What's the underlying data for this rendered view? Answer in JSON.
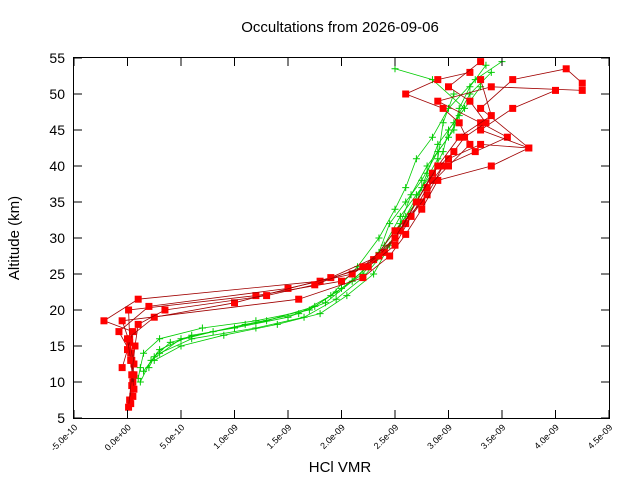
{
  "chart_data": {
    "type": "line",
    "title": "Occultations from 2026-09-06",
    "xlabel": "HCl VMR",
    "ylabel": "Altitude (km)",
    "xlim": [
      -5e-10,
      4.5e-09
    ],
    "ylim": [
      5,
      55
    ],
    "xticks": [
      "-5.0e-10",
      "0.0e+00",
      "5.0e-10",
      "1.0e-09",
      "1.5e-09",
      "2.0e-09",
      "2.5e-09",
      "3.0e-09",
      "3.5e-09",
      "4.0e-09",
      "4.5e-09"
    ],
    "yticks": [
      "5",
      "10",
      "15",
      "20",
      "25",
      "30",
      "35",
      "40",
      "45",
      "50",
      "55"
    ],
    "grid": false,
    "legend": "none",
    "colors": {
      "green_series": "#00cc00",
      "red_series": "#ff0000",
      "red_line": "#a00000"
    },
    "series": [
      {
        "marker": "plus",
        "color": "#00cc00",
        "profiles": [
          {
            "x": [
              1e-10,
              1.2e-10,
              1.5e-10,
              3e-10,
              7e-10,
              1.2e-09,
              1.7e-09,
              1.95e-09,
              2.2e-09,
              2.35e-09,
              2.45e-09,
              2.6e-09,
              2.75e-09,
              2.9e-09,
              3.05e-09,
              3.1e-09,
              3.2e-09,
              3.35e-09
            ],
            "y": [
              10.5,
              12,
              14,
              16,
              17.5,
              18.5,
              20,
              22.5,
              25,
              28,
              32,
              35,
              38,
              42,
              45,
              48,
              51,
              54
            ]
          },
          {
            "x": [
              2e-10,
              2.5e-10,
              4e-10,
              8e-10,
              1.3e-09,
              1.75e-09,
              2e-09,
              2.25e-09,
              2.4e-09,
              2.55e-09,
              2.7e-09,
              2.85e-09,
              2.95e-09,
              3e-09,
              3.15e-09,
              2.85e-09,
              2.5e-09
            ],
            "y": [
              12,
              13.5,
              15.5,
              17,
              18.5,
              20.5,
              23,
              26,
              29,
              33,
              36,
              39,
              42,
              45,
              48,
              52,
              53.5
            ]
          },
          {
            "x": [
              1.5e-10,
              3e-10,
              6e-10,
              1e-09,
              1.5e-09,
              1.85e-09,
              2.1e-09,
              2.3e-09,
              2.5e-09,
              2.7e-09,
              2.8e-09,
              2.9e-09,
              3.05e-09,
              3.2e-09,
              3.4e-09
            ],
            "y": [
              11.5,
              14.5,
              16.5,
              17.5,
              19,
              21,
              24,
              27,
              31,
              35,
              39,
              43,
              46,
              50,
              53
            ]
          },
          {
            "x": [
              2.5e-10,
              5e-10,
              9e-10,
              1.4e-09,
              1.8e-09,
              2.05e-09,
              2.3e-09,
              2.45e-09,
              2.55e-09,
              2.65e-09,
              2.8e-09,
              3e-09,
              3.1e-09,
              3.3e-09
            ],
            "y": [
              13,
              15,
              16.5,
              18,
              19.5,
              22,
              25,
              29,
              32,
              36,
              40,
              44,
              47,
              51
            ]
          },
          {
            "x": [
              1.2e-10,
              2.2e-10,
              5e-10,
              1.1e-09,
              1.6e-09,
              1.9e-09,
              2.15e-09,
              2.35e-09,
              2.5e-09,
              2.6e-09,
              2.7e-09,
              2.85e-09,
              3e-09,
              3.25e-09,
              3.5e-09
            ],
            "y": [
              10,
              13,
              16,
              18,
              19.5,
              22,
              26,
              30,
              34,
              37,
              41,
              44,
              48,
              52,
              54.5
            ]
          },
          {
            "x": [
              3e-10,
              6e-10,
              1.2e-09,
              1.65e-09,
              1.95e-09,
              2.2e-09,
              2.4e-09,
              2.6e-09,
              2.75e-09,
              2.9e-09,
              2.95e-09,
              3.05e-09
            ],
            "y": [
              14,
              16,
              17.5,
              19,
              21.5,
              24.5,
              28,
              33,
              37,
              41,
              46,
              50
            ]
          }
        ]
      },
      {
        "marker": "square",
        "color": "#ff0000",
        "profiles": [
          {
            "x": [
              3e-11,
              5e-11,
              4e-11,
              2e-11,
              1e-11,
              1.2e-09,
              2e-09,
              2.3e-09,
              2.5e-09,
              2.75e-09,
              2.85e-09,
              3e-09,
              3.3e-09,
              3.75e-09,
              3.3e-09,
              3.6e-09,
              4.1e-09,
              4.25e-09
            ],
            "y": [
              7,
              10,
              13,
              16,
              20,
              22,
              24,
              27,
              31,
              35,
              38,
              41,
              43,
              42.5,
              48,
              52,
              53.5,
              51.5
            ]
          },
          {
            "x": [
              5e-11,
              6e-11,
              3e-11,
              -8e-11,
              2e-10,
              1.5e-09,
              2.1e-09,
              2.4e-09,
              2.6e-09,
              2.8e-09,
              2.95e-09,
              3.25e-09,
              3.55e-09,
              3.3e-09,
              2.9e-09,
              3.4e-09,
              4.25e-09
            ],
            "y": [
              8,
              11,
              14,
              17,
              20.5,
              23,
              25,
              28,
              32,
              36,
              40,
              42,
              44,
              46,
              49,
              51,
              50.5
            ]
          },
          {
            "x": [
              2e-11,
              4e-11,
              6e-11,
              2e-11,
              -5e-11,
              1.6e-09,
              2.2e-09,
              2.45e-09,
              2.6e-09,
              2.75e-09,
              2.9e-09,
              3.4e-09,
              3.75e-09,
              3.3e-09,
              3.6e-09,
              4e-09
            ],
            "y": [
              7.5,
              9.5,
              12.5,
              15.5,
              18.5,
              21.5,
              24.5,
              27.5,
              30.5,
              34,
              38,
              40,
              42.5,
              45,
              48,
              50.5
            ]
          },
          {
            "x": [
              -5e-11,
              0.0,
              5e-11,
              -2.2e-10,
              1e-10,
              1.8e-09,
              2.25e-09,
              2.5e-09,
              2.65e-09,
              2.8e-09,
              3e-09,
              3.2e-09,
              3.1e-09,
              2.95e-09,
              2.6e-09,
              2.9e-09,
              3.2e-09
            ],
            "y": [
              12,
              14.5,
              17,
              18.5,
              21.5,
              24,
              26,
              29,
              33,
              37,
              40,
              43,
              46,
              48,
              50,
              52,
              53
            ]
          },
          {
            "x": [
              6e-11,
              3e-11,
              0.0,
              2.5e-10,
              1e-09,
              1.9e-09,
              2.35e-09,
              2.55e-09,
              2.7e-09,
              2.85e-09,
              3.05e-09,
              3.15e-09,
              3.35e-09,
              3.2e-09,
              3e-09,
              3.3e-09
            ],
            "y": [
              9,
              13,
              16,
              19,
              21,
              24.5,
              27.5,
              31,
              35,
              39,
              42,
              44,
              46,
              49,
              51,
              54.5
            ]
          },
          {
            "x": [
              1e-11,
              4e-11,
              7e-11,
              1e-10,
              3.5e-10,
              1.3e-09,
              1.75e-09,
              2.2e-09,
              2.5e-09,
              2.7e-09,
              2.9e-09,
              3.1e-09,
              3.4e-09,
              3.3e-09
            ],
            "y": [
              6.5,
              11,
              15,
              18,
              20,
              22,
              23.5,
              26,
              30,
              35,
              40,
              44,
              47,
              52
            ]
          }
        ]
      }
    ]
  }
}
